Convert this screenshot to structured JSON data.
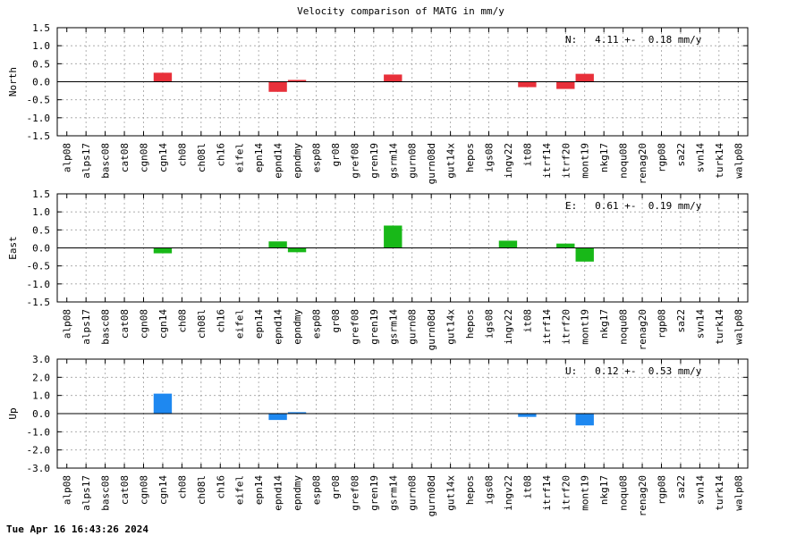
{
  "chart_data": {
    "title": "Velocity comparison of MATG in mm/y",
    "type": "bar",
    "categories": [
      "alp08",
      "alps17",
      "basc08",
      "cat08",
      "cgn08",
      "cgn14",
      "ch08",
      "ch08l",
      "ch16",
      "eifel",
      "epn14",
      "epnd14",
      "epndmy",
      "esp08",
      "gr08",
      "gref08",
      "gren19",
      "gsrm14",
      "gurn08",
      "gurn08d",
      "gut14x",
      "hepos",
      "igs08",
      "ingv22",
      "it08",
      "itrf14",
      "itrf20",
      "mont19",
      "nkg17",
      "noqu08",
      "renag20",
      "rgp08",
      "sa22",
      "svn14",
      "turk14",
      "walp08"
    ],
    "panels": [
      {
        "ylabel": "North",
        "ylim": [
          -1.5,
          1.5
        ],
        "yticks": [
          "1.5",
          "1.0",
          "0.5",
          "0.0",
          "-0.5",
          "-1.0",
          "-1.5"
        ],
        "ytick_values": [
          1.5,
          1.0,
          0.5,
          0.0,
          -0.5,
          -1.0,
          -1.5
        ],
        "annotation": "N:   4.11 +-  0.18 mm/y",
        "color": "#e8303a",
        "values": [
          null,
          null,
          null,
          null,
          null,
          0.25,
          null,
          null,
          null,
          null,
          null,
          -0.28,
          0.05,
          null,
          null,
          null,
          null,
          0.2,
          null,
          null,
          null,
          null,
          null,
          null,
          -0.15,
          null,
          -0.2,
          0.22,
          null,
          null,
          null,
          null,
          null,
          null,
          null,
          null
        ]
      },
      {
        "ylabel": "East",
        "ylim": [
          -1.5,
          1.5
        ],
        "yticks": [
          "1.5",
          "1.0",
          "0.5",
          "0.0",
          "-0.5",
          "-1.0",
          "-1.5"
        ],
        "ytick_values": [
          1.5,
          1.0,
          0.5,
          0.0,
          -0.5,
          -1.0,
          -1.5
        ],
        "annotation": "E:   0.61 +-  0.19 mm/y",
        "color": "#18b818",
        "values": [
          null,
          null,
          null,
          null,
          null,
          -0.15,
          null,
          null,
          null,
          null,
          null,
          0.18,
          -0.12,
          null,
          null,
          null,
          null,
          0.62,
          null,
          null,
          null,
          null,
          null,
          0.2,
          null,
          null,
          0.12,
          -0.38,
          null,
          null,
          null,
          null,
          null,
          null,
          null,
          null
        ]
      },
      {
        "ylabel": "Up",
        "ylim": [
          -3.0,
          3.0
        ],
        "yticks": [
          "3.0",
          "2.0",
          "1.0",
          "0.0",
          "-1.0",
          "-2.0",
          "-3.0"
        ],
        "ytick_values": [
          3.0,
          2.0,
          1.0,
          0.0,
          -1.0,
          -2.0,
          -3.0
        ],
        "annotation": "U:   0.12 +-  0.53 mm/y",
        "color": "#1e88f0",
        "values": [
          null,
          null,
          null,
          null,
          null,
          1.1,
          null,
          null,
          null,
          null,
          null,
          -0.35,
          0.08,
          null,
          null,
          null,
          null,
          null,
          null,
          null,
          null,
          null,
          null,
          null,
          -0.18,
          null,
          null,
          -0.65,
          null,
          null,
          null,
          null,
          null,
          null,
          null,
          null
        ]
      }
    ],
    "grid": true
  },
  "footer": {
    "timestamp": "Tue Apr 16 16:43:26 2024"
  }
}
